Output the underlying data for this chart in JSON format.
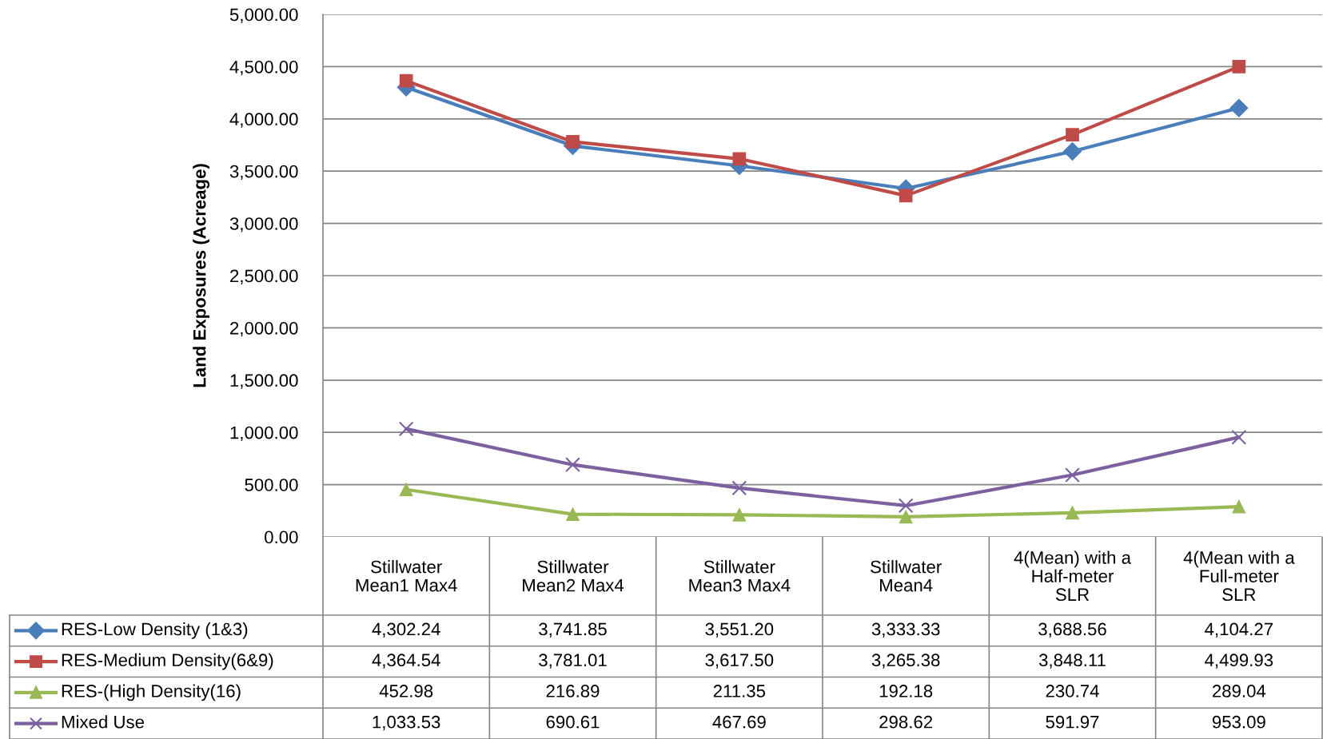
{
  "chart_data": {
    "type": "line",
    "ylabel": "Land Exposures (Acreage)",
    "categories": [
      "Stillwater\nMean1 Max4",
      "Stillwater\nMean2 Max4",
      "Stillwater\nMean3 Max4",
      "Stillwater\nMean4",
      "4(Mean) with a\nHalf-meter\nSLR",
      "4(Mean with a\nFull-meter\nSLR"
    ],
    "series": [
      {
        "name": "RES-Low Density (1&3)",
        "color": "#4a7ebb",
        "marker": "diamond",
        "values": [
          4302.24,
          3741.85,
          3551.2,
          3333.33,
          3688.56,
          4104.27
        ],
        "value_labels": [
          "4,302.24",
          "3,741.85",
          "3,551.20",
          "3,333.33",
          "3,688.56",
          "4,104.27"
        ]
      },
      {
        "name": "RES-Medium Density(6&9)",
        "color": "#be4b48",
        "marker": "square",
        "values": [
          4364.54,
          3781.01,
          3617.5,
          3265.38,
          3848.11,
          4499.93
        ],
        "value_labels": [
          "4,364.54",
          "3,781.01",
          "3,617.50",
          "3,265.38",
          "3,848.11",
          "4,499.93"
        ]
      },
      {
        "name": "RES-(High Density(16)",
        "color": "#98b954",
        "marker": "triangle",
        "values": [
          452.98,
          216.89,
          211.35,
          192.18,
          230.74,
          289.04
        ],
        "value_labels": [
          "452.98",
          "216.89",
          "211.35",
          "192.18",
          "230.74",
          "289.04"
        ]
      },
      {
        "name": "Mixed Use",
        "color": "#7d60a0",
        "marker": "cross",
        "values": [
          1033.53,
          690.61,
          467.69,
          298.62,
          591.97,
          953.09
        ],
        "value_labels": [
          "1,033.53",
          "690.61",
          "467.69",
          "298.62",
          "591.97",
          "953.09"
        ]
      }
    ],
    "ylim": [
      0,
      5000
    ],
    "yticks": [
      {
        "value": 0,
        "label": "0.00"
      },
      {
        "value": 500,
        "label": "500.00"
      },
      {
        "value": 1000,
        "label": "1,000.00"
      },
      {
        "value": 1500,
        "label": "1,500.00"
      },
      {
        "value": 2000,
        "label": "2,000.00"
      },
      {
        "value": 2500,
        "label": "2,500.00"
      },
      {
        "value": 3000,
        "label": "3,000.00"
      },
      {
        "value": 3500,
        "label": "3,500.00"
      },
      {
        "value": 4000,
        "label": "4,000.00"
      },
      {
        "value": 4500,
        "label": "4,500.00"
      },
      {
        "value": 5000,
        "label": "5,000.00"
      }
    ],
    "grid": "y",
    "legend": "bottom",
    "line_style": "solid"
  }
}
